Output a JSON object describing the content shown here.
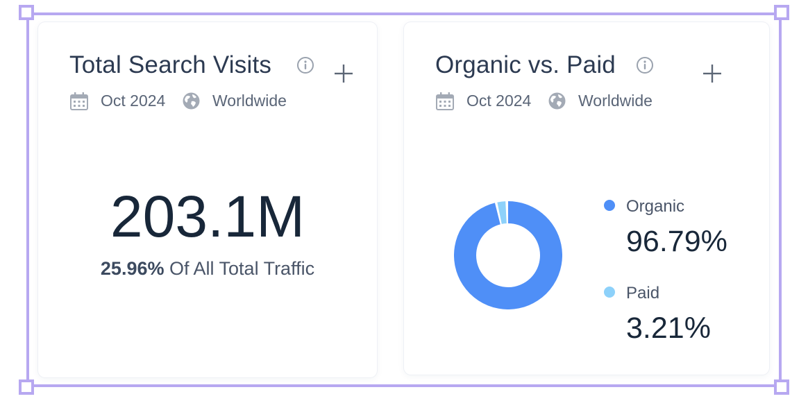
{
  "widgets": {
    "total_search_visits": {
      "title": "Total Search Visits",
      "date": "Oct 2024",
      "region": "Worldwide",
      "value": "203.1M",
      "share_percent": "25.96%",
      "share_suffix": "Of All Total Traffic"
    },
    "organic_vs_paid": {
      "title": "Organic vs. Paid",
      "date": "Oct 2024",
      "region": "Worldwide",
      "legend": [
        {
          "label": "Organic",
          "value": "96.79%",
          "fraction": 0.9679,
          "color": "#4f8ff7"
        },
        {
          "label": "Paid",
          "value": "3.21%",
          "fraction": 0.0321,
          "color": "#8dd1fa"
        }
      ]
    }
  },
  "icons": {
    "info": "info-circle-icon",
    "add": "plus-icon",
    "date": "calendar-icon",
    "region": "globe-icon"
  },
  "colors": {
    "selection": "#b7a8f1",
    "title": "#2c3a51",
    "value": "#182739",
    "organic": "#4f8ff7",
    "paid": "#8dd1fa"
  }
}
